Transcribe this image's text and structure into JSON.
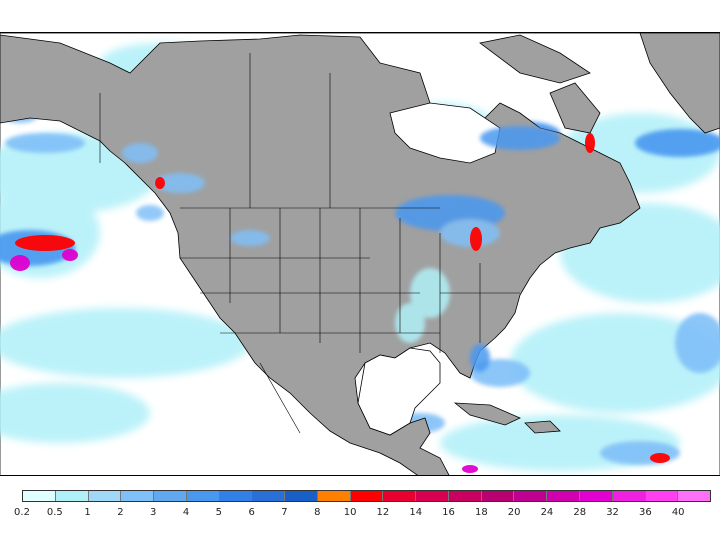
{
  "map": {
    "land_color": "#a0a0a0",
    "ocean_color": "#ffffff",
    "border_color": "#000000"
  },
  "legend": {
    "labels": [
      "0.2",
      "0.5",
      "1",
      "2",
      "3",
      "4",
      "5",
      "6",
      "7",
      "8",
      "10",
      "12",
      "14",
      "16",
      "18",
      "20",
      "24",
      "28",
      "32",
      "36",
      "40"
    ],
    "colors": [
      "#e0ffff",
      "#b0f0f8",
      "#a0d8f8",
      "#80c0f8",
      "#60a8f0",
      "#4898f0",
      "#3080e8",
      "#2870d8",
      "#1860c8",
      "#ff8000",
      "#ff0000",
      "#e80030",
      "#d80050",
      "#c80060",
      "#b80070",
      "#c00090",
      "#d000b0",
      "#e000d0",
      "#f020e0",
      "#ff40f0",
      "#ff70f8"
    ]
  }
}
